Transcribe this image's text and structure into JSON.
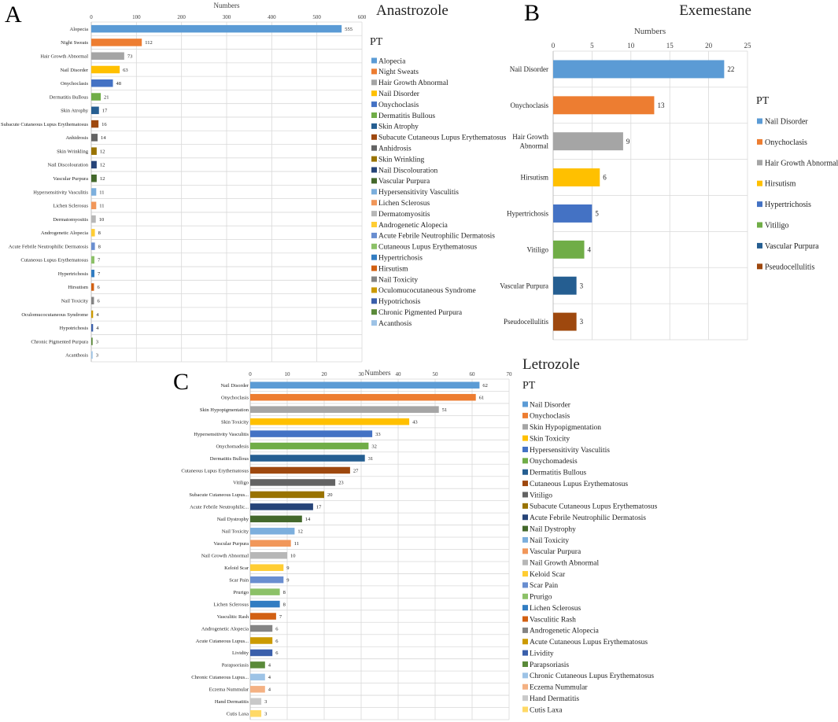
{
  "colors": {
    "blue": "#5b9bd5",
    "orange": "#ed7d31",
    "gray": "#a5a5a5",
    "gold": "#ffc000",
    "royal": "#4472c4",
    "green": "#70ad47",
    "navy": "#255e91",
    "rust": "#9e480e",
    "darkgray": "#636363",
    "olive": "#997300",
    "darknavy": "#264478",
    "darkgreen": "#43682b",
    "lightblue": "#7cafdd",
    "peach": "#f1975a",
    "silver": "#b7b7b7",
    "yellow": "#ffcd33",
    "cornflower": "#698ed0",
    "lightgreen": "#8cc168",
    "midblue": "#327dc2",
    "burnt": "#d26012",
    "steel": "#848484",
    "mustard": "#cc9a00",
    "cobalt": "#3a5fab",
    "forest": "#5a8a39",
    "paleblue": "#9dc3e6",
    "salmon": "#f4b183",
    "lightsilver": "#c9c9c9",
    "paleyellow": "#ffd966"
  },
  "chart_data": [
    {
      "panel": "A",
      "type": "bar",
      "orientation": "horizontal",
      "title": "Anastrozole",
      "xlabel": "Numbers",
      "legend_title": "PT",
      "xlim": [
        0,
        600
      ],
      "xticks": [
        0,
        100,
        200,
        300,
        400,
        500,
        600
      ],
      "categories": [
        "Alopecia",
        "Night Sweats",
        "Hair Growth Abnormal",
        "Nail Disorder",
        "Onychoclasis",
        "Dermatitis Bullous",
        "Skin Atrophy",
        "Subacute Cutaneous Lupus Erythematosus",
        "Anhidrosis",
        "Skin Wrinkling",
        "Nail Discolouration",
        "Vascular Purpura",
        "Hypersensitivity Vasculitis",
        "Lichen Sclerosus",
        "Dermatomyositis",
        "Androgenetic Alopecia",
        "Acute Febrile Neutrophilic Dermatosis",
        "Cutaneous Lupus Erythematosus",
        "Hypertrichosis",
        "Hirsutism",
        "Nail Toxicity",
        "Oculomucocutaneous Syndrome",
        "Hypotrichosis",
        "Chronic Pigmented Purpura",
        "Acanthosis"
      ],
      "values": [
        555,
        112,
        73,
        63,
        48,
        21,
        17,
        16,
        14,
        12,
        12,
        12,
        11,
        11,
        10,
        8,
        8,
        7,
        7,
        6,
        6,
        4,
        4,
        3,
        3
      ],
      "bar_colors": [
        "#5b9bd5",
        "#ed7d31",
        "#a5a5a5",
        "#ffc000",
        "#4472c4",
        "#70ad47",
        "#255e91",
        "#9e480e",
        "#636363",
        "#997300",
        "#264478",
        "#43682b",
        "#7cafdd",
        "#f1975a",
        "#b7b7b7",
        "#ffcd33",
        "#698ed0",
        "#8cc168",
        "#327dc2",
        "#d26012",
        "#848484",
        "#cc9a00",
        "#3a5fab",
        "#5a8a39",
        "#9dc3e6"
      ]
    },
    {
      "panel": "B",
      "type": "bar",
      "orientation": "horizontal",
      "title": "Exemestane",
      "xlabel": "Numbers",
      "legend_title": "PT",
      "xlim": [
        0,
        25
      ],
      "xticks": [
        0,
        5,
        10,
        15,
        20,
        25
      ],
      "categories": [
        "Nail Disorder",
        "Onychoclasis",
        "Hair Growth Abnormal",
        "Hirsutism",
        "Hypertrichosis",
        "Vitiligo",
        "Vascular Purpura",
        "Pseudocellulitis"
      ],
      "axis_labels": [
        [
          "Nail Disorder"
        ],
        [
          "Onychoclasis"
        ],
        [
          "Hair Growth",
          "Abnormal"
        ],
        [
          "Hirsutism"
        ],
        [
          "Hypertrichosis"
        ],
        [
          "Vitiligo"
        ],
        [
          "Vascular Purpura"
        ],
        [
          "Pseudocellulitis"
        ]
      ],
      "values": [
        22,
        13,
        9,
        6,
        5,
        4,
        3,
        3
      ],
      "bar_colors": [
        "#5b9bd5",
        "#ed7d31",
        "#a5a5a5",
        "#ffc000",
        "#4472c4",
        "#70ad47",
        "#255e91",
        "#9e480e"
      ]
    },
    {
      "panel": "C",
      "type": "bar",
      "orientation": "horizontal",
      "title": "Letrozole",
      "xlabel": "Numbers",
      "legend_title": "PT",
      "xlim": [
        0,
        70
      ],
      "xticks": [
        0,
        10,
        20,
        30,
        40,
        50,
        60,
        70
      ],
      "categories": [
        "Nail Disorder",
        "Onychoclasis",
        "Skin Hypopigmentation",
        "Skin Toxicity",
        "Hypersensitivity Vasculitis",
        "Onychomadesis",
        "Dermatitis Bullous",
        "Cutaneous Lupus Erythematosus",
        "Vitiligo",
        "Subacute Cutaneous Lupus Erythematosus",
        "Acute Febrile Neutrophilic Dermatosis",
        "Nail Dystrophy",
        "Nail Toxicity",
        "Vascular Purpura",
        "Nail Growth Abnormal",
        "Keloid Scar",
        "Scar Pain",
        "Prurigo",
        "Lichen Sclerosus",
        "Vasculitic Rash",
        "Androgenetic Alopecia",
        "Acute Cutaneous Lupus Erythematosus",
        "Lividity",
        "Parapsoriasis",
        "Chronic Cutaneous Lupus Erythematosus",
        "Eczema Nummular",
        "Hand Dermatitis",
        "Cutis Laxa"
      ],
      "axis_labels": [
        "Nail Disorder",
        "Onychoclasis",
        "Skin Hypopigmentation",
        "Skin Toxicity",
        "Hypersensitivity Vasculitis",
        "Onychomadesis",
        "Dermatitis Bullous",
        "Cutaneous Lupus Erythematosus",
        "Vitiligo",
        "Subacute Cutaneous Lupus...",
        "Acute Febrile Neutrophilic...",
        "Nail Dystrophy",
        "Nail Toxicity",
        "Vascular Purpura",
        "Nail Growth Abnormal",
        "Keloid Scar",
        "Scar Pain",
        "Prurigo",
        "Lichen Sclerosus",
        "Vasculitic Rash",
        "Androgenetic Alopecia",
        "Acute Cutaneous Lupus...",
        "Lividity",
        "Parapsoriasis",
        "Chronic Cutaneous Lupus...",
        "Eczema Nummular",
        "Hand Dermatitis",
        "Cutis Laxa"
      ],
      "values": [
        62,
        61,
        51,
        43,
        33,
        32,
        31,
        27,
        23,
        20,
        17,
        14,
        12,
        11,
        10,
        9,
        9,
        8,
        8,
        7,
        6,
        6,
        6,
        4,
        4,
        4,
        3,
        3
      ],
      "bar_colors": [
        "#5b9bd5",
        "#ed7d31",
        "#a5a5a5",
        "#ffc000",
        "#4472c4",
        "#70ad47",
        "#255e91",
        "#9e480e",
        "#636363",
        "#997300",
        "#264478",
        "#43682b",
        "#7cafdd",
        "#f1975a",
        "#b7b7b7",
        "#ffcd33",
        "#698ed0",
        "#8cc168",
        "#327dc2",
        "#d26012",
        "#848484",
        "#cc9a00",
        "#3a5fab",
        "#5a8a39",
        "#9dc3e6",
        "#f4b183",
        "#c9c9c9",
        "#ffd966"
      ]
    }
  ],
  "panel_labels": {
    "a": "A",
    "b": "B",
    "c": "C"
  }
}
